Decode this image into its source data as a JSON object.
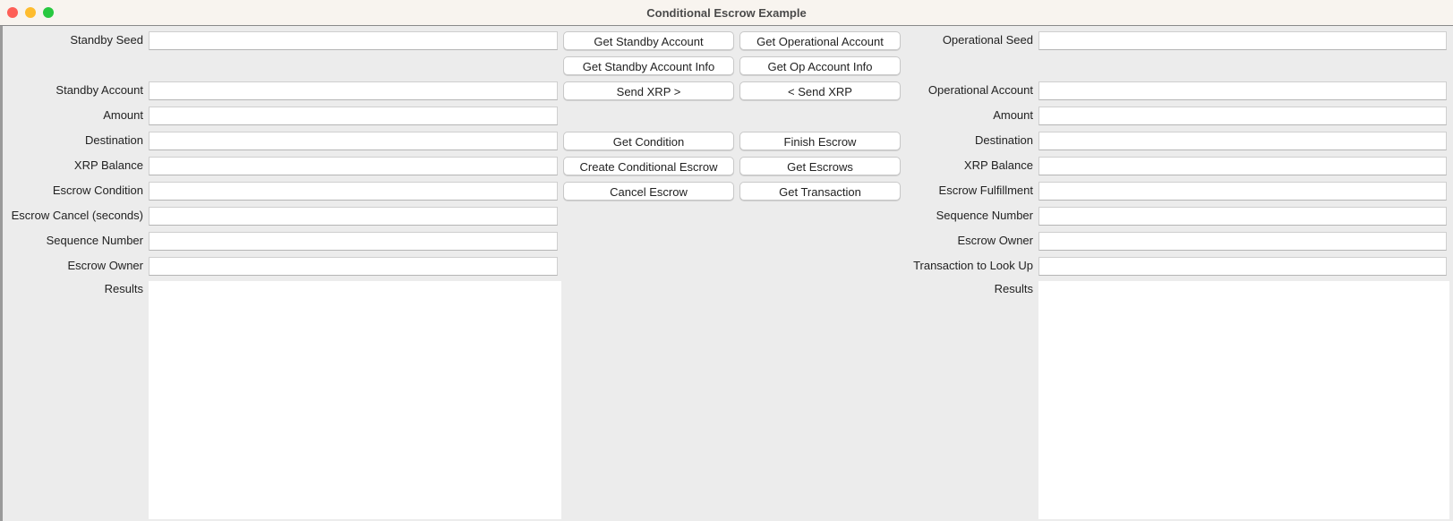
{
  "window": {
    "title": "Conditional Escrow Example",
    "controls": {
      "close": "#fe5f57",
      "minimize": "#febc2e",
      "zoom": "#28c840"
    }
  },
  "standby": {
    "fields": [
      {
        "label": "Standby Seed",
        "value": ""
      },
      {
        "label": "Standby Account",
        "value": ""
      },
      {
        "label": "Amount",
        "value": ""
      },
      {
        "label": "Destination",
        "value": ""
      },
      {
        "label": "XRP Balance",
        "value": ""
      },
      {
        "label": "Escrow Condition",
        "value": ""
      },
      {
        "label": "Escrow Cancel (seconds)",
        "value": ""
      },
      {
        "label": "Sequence Number",
        "value": ""
      },
      {
        "label": "Escrow Owner",
        "value": ""
      }
    ],
    "results_label": "Results",
    "results": ""
  },
  "operational": {
    "fields": [
      {
        "label": "Operational Seed",
        "value": ""
      },
      {
        "label": "Operational Account",
        "value": ""
      },
      {
        "label": "Amount",
        "value": ""
      },
      {
        "label": "Destination",
        "value": ""
      },
      {
        "label": "XRP Balance",
        "value": ""
      },
      {
        "label": "Escrow Fulfillment",
        "value": ""
      },
      {
        "label": "Sequence Number",
        "value": ""
      },
      {
        "label": "Escrow Owner",
        "value": ""
      },
      {
        "label": "Transaction to Look Up",
        "value": ""
      }
    ],
    "results_label": "Results",
    "results": ""
  },
  "buttons": {
    "left": [
      "Get Standby Account",
      "Get Standby Account Info",
      "Send XRP >",
      "Get Condition",
      "Create Conditional Escrow",
      "Cancel Escrow"
    ],
    "right": [
      "Get Operational Account",
      "Get Op Account Info",
      "< Send XRP",
      "Finish Escrow",
      "Get Escrows",
      "Get Transaction"
    ]
  }
}
